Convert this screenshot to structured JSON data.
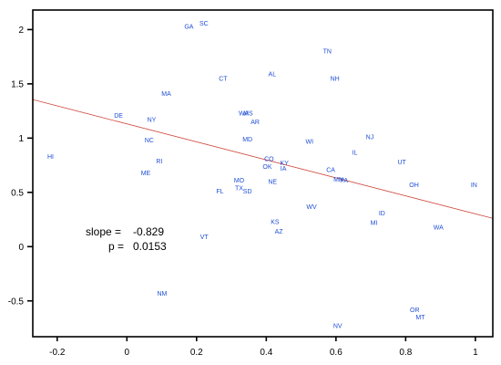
{
  "chart_data": {
    "type": "scatter",
    "title": "",
    "xlabel": "",
    "ylabel": "",
    "xlim": [
      -0.27,
      1.05
    ],
    "ylim": [
      -0.83,
      2.18
    ],
    "xticks": [
      -0.2,
      0,
      0.2,
      0.4,
      0.6,
      0.8,
      1
    ],
    "yticks": [
      -0.5,
      0,
      0.5,
      1,
      1.5,
      2
    ],
    "xtick_labels": [
      "-0.2",
      "0",
      "0.2",
      "0.4",
      "0.6",
      "0.8",
      "1"
    ],
    "ytick_labels": [
      "-0.5",
      "0",
      "0.5",
      "1",
      "1.5",
      "2"
    ],
    "grid": false,
    "point_color": "#1f4fd6",
    "line_color": "#d0493e",
    "regression": {
      "slope": -0.829,
      "intercept": 1.131
    },
    "annotation": {
      "slope_label": "slope =",
      "slope_value": "-0.829",
      "p_label": "p =",
      "p_value": "0.0153"
    },
    "points": [
      {
        "label": "GA",
        "x": 0.178,
        "y": 2.03
      },
      {
        "label": "SC",
        "x": 0.221,
        "y": 2.06
      },
      {
        "label": "TN",
        "x": 0.575,
        "y": 1.8
      },
      {
        "label": "AL",
        "x": 0.417,
        "y": 1.59
      },
      {
        "label": "CT",
        "x": 0.276,
        "y": 1.55
      },
      {
        "label": "NH",
        "x": 0.597,
        "y": 1.55
      },
      {
        "label": "MA",
        "x": 0.113,
        "y": 1.41
      },
      {
        "label": "DE",
        "x": -0.024,
        "y": 1.21
      },
      {
        "label": "NY",
        "x": 0.071,
        "y": 1.17
      },
      {
        "label": "WA",
        "x": 0.335,
        "y": 1.23
      },
      {
        "label": "MS",
        "x": 0.348,
        "y": 1.23
      },
      {
        "label": "AR",
        "x": 0.368,
        "y": 1.15
      },
      {
        "label": "NJ",
        "x": 0.697,
        "y": 1.01
      },
      {
        "label": "MD",
        "x": 0.346,
        "y": 0.99
      },
      {
        "label": "NC",
        "x": 0.064,
        "y": 0.98
      },
      {
        "label": "WI",
        "x": 0.524,
        "y": 0.97
      },
      {
        "label": "IL",
        "x": 0.654,
        "y": 0.87
      },
      {
        "label": "HI",
        "x": -0.219,
        "y": 0.83
      },
      {
        "label": "RI",
        "x": 0.093,
        "y": 0.79
      },
      {
        "label": "CO",
        "x": 0.408,
        "y": 0.81
      },
      {
        "label": "KY",
        "x": 0.452,
        "y": 0.77
      },
      {
        "label": "OK",
        "x": 0.403,
        "y": 0.74
      },
      {
        "label": "IA",
        "x": 0.449,
        "y": 0.72
      },
      {
        "label": "UT",
        "x": 0.789,
        "y": 0.78
      },
      {
        "label": "ME",
        "x": 0.054,
        "y": 0.68
      },
      {
        "label": "CA",
        "x": 0.585,
        "y": 0.71
      },
      {
        "label": "MN",
        "x": 0.607,
        "y": 0.62
      },
      {
        "label": "PA",
        "x": 0.623,
        "y": 0.61
      },
      {
        "label": "NE",
        "x": 0.418,
        "y": 0.6
      },
      {
        "label": "MO",
        "x": 0.322,
        "y": 0.61
      },
      {
        "label": "OH",
        "x": 0.824,
        "y": 0.57
      },
      {
        "label": "IN",
        "x": 0.996,
        "y": 0.57
      },
      {
        "label": "TX",
        "x": 0.322,
        "y": 0.54
      },
      {
        "label": "FL",
        "x": 0.267,
        "y": 0.51
      },
      {
        "label": "SD",
        "x": 0.346,
        "y": 0.51
      },
      {
        "label": "WV",
        "x": 0.53,
        "y": 0.37
      },
      {
        "label": "ID",
        "x": 0.732,
        "y": 0.31
      },
      {
        "label": "KS",
        "x": 0.425,
        "y": 0.23
      },
      {
        "label": "MI",
        "x": 0.709,
        "y": 0.22
      },
      {
        "label": "WA",
        "x": 0.894,
        "y": 0.18
      },
      {
        "label": "AZ",
        "x": 0.436,
        "y": 0.14
      },
      {
        "label": "VT",
        "x": 0.222,
        "y": 0.09
      },
      {
        "label": "NM",
        "x": 0.101,
        "y": -0.43
      },
      {
        "label": "OR",
        "x": 0.826,
        "y": -0.58
      },
      {
        "label": "MT",
        "x": 0.842,
        "y": -0.65
      },
      {
        "label": "NV",
        "x": 0.605,
        "y": -0.73
      }
    ]
  }
}
